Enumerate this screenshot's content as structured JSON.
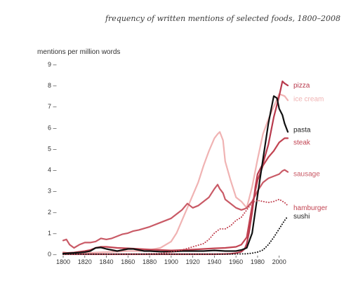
{
  "chart_data": {
    "type": "line",
    "title": "frequency of written mentions of selected foods, 1800–2008",
    "xlabel": "",
    "ylabel": "mentions per million words",
    "xlim": [
      1800,
      2008
    ],
    "ylim": [
      0,
      9
    ],
    "x_ticks": [
      "1800",
      "1820",
      "1840",
      "1860",
      "1880",
      "1900",
      "1920",
      "1940",
      "1960",
      "1980",
      "2000"
    ],
    "y_ticks": [
      "0 –",
      "1 –",
      "2 –",
      "3 –",
      "4 –",
      "5 –",
      "6 –",
      "7 –",
      "8 –",
      "9 –"
    ],
    "grid": false,
    "legend": "direct labels at line ends (right)",
    "series": [
      {
        "name": "ice cream",
        "color": "#f0b3b3",
        "style": "solid",
        "x": [
          1800,
          1805,
          1810,
          1820,
          1830,
          1840,
          1850,
          1860,
          1870,
          1880,
          1890,
          1900,
          1905,
          1910,
          1915,
          1920,
          1925,
          1930,
          1935,
          1940,
          1943,
          1945,
          1948,
          1950,
          1955,
          1960,
          1965,
          1970,
          1975,
          1980,
          1985,
          1990,
          1995,
          2000,
          2005,
          2008
        ],
        "values": [
          0.1,
          0.05,
          0.05,
          0.05,
          0.08,
          0.1,
          0.12,
          0.15,
          0.15,
          0.2,
          0.3,
          0.6,
          1.0,
          1.6,
          2.2,
          2.8,
          3.4,
          4.2,
          4.9,
          5.5,
          5.7,
          5.8,
          5.4,
          4.4,
          3.5,
          2.7,
          2.5,
          2.2,
          3.2,
          4.5,
          5.7,
          6.4,
          7.0,
          7.6,
          7.5,
          7.3
        ]
      },
      {
        "name": "sausage",
        "color": "#c95a66",
        "style": "solid",
        "x": [
          1800,
          1803,
          1806,
          1810,
          1815,
          1820,
          1825,
          1830,
          1835,
          1840,
          1845,
          1850,
          1855,
          1860,
          1865,
          1870,
          1880,
          1890,
          1900,
          1905,
          1910,
          1915,
          1920,
          1925,
          1930,
          1935,
          1940,
          1943,
          1945,
          1948,
          1950,
          1955,
          1960,
          1965,
          1968,
          1970,
          1975,
          1980,
          1985,
          1990,
          1995,
          2000,
          2003,
          2005,
          2008
        ],
        "values": [
          0.65,
          0.7,
          0.45,
          0.3,
          0.45,
          0.55,
          0.55,
          0.6,
          0.75,
          0.7,
          0.75,
          0.85,
          0.95,
          1.0,
          1.1,
          1.15,
          1.3,
          1.5,
          1.7,
          1.9,
          2.1,
          2.4,
          2.2,
          2.3,
          2.5,
          2.7,
          3.1,
          3.3,
          3.1,
          2.9,
          2.6,
          2.4,
          2.2,
          2.1,
          2.15,
          2.2,
          2.5,
          3.0,
          3.4,
          3.6,
          3.7,
          3.8,
          3.95,
          4.0,
          3.9
        ]
      },
      {
        "name": "steak",
        "color": "#c24452",
        "style": "solid",
        "x": [
          1800,
          1810,
          1820,
          1825,
          1830,
          1835,
          1840,
          1850,
          1860,
          1870,
          1880,
          1890,
          1900,
          1910,
          1920,
          1930,
          1940,
          1950,
          1960,
          1965,
          1970,
          1975,
          1980,
          1985,
          1990,
          1995,
          2000,
          2005,
          2008
        ],
        "values": [
          0.05,
          0.08,
          0.15,
          0.2,
          0.3,
          0.35,
          0.35,
          0.3,
          0.28,
          0.25,
          0.22,
          0.2,
          0.18,
          0.2,
          0.22,
          0.25,
          0.28,
          0.3,
          0.35,
          0.45,
          0.8,
          2.3,
          3.5,
          4.2,
          4.6,
          4.9,
          5.3,
          5.5,
          5.5
        ]
      },
      {
        "name": "pizza",
        "color": "#b83a4d",
        "style": "solid",
        "x": [
          1800,
          1900,
          1940,
          1950,
          1955,
          1960,
          1965,
          1968,
          1970,
          1972,
          1975,
          1978,
          1980,
          1985,
          1990,
          1995,
          2000,
          2003,
          2005,
          2008
        ],
        "values": [
          0.0,
          0.0,
          0.0,
          0.01,
          0.02,
          0.05,
          0.12,
          0.25,
          0.5,
          1.0,
          2.0,
          3.2,
          3.8,
          4.3,
          5.2,
          6.5,
          7.5,
          8.2,
          8.1,
          8.0
        ]
      },
      {
        "name": "pasta",
        "color": "#111111",
        "style": "solid",
        "x": [
          1800,
          1815,
          1820,
          1825,
          1830,
          1835,
          1840,
          1845,
          1850,
          1855,
          1860,
          1865,
          1870,
          1875,
          1880,
          1890,
          1900,
          1910,
          1920,
          1930,
          1940,
          1950,
          1960,
          1965,
          1970,
          1975,
          1980,
          1985,
          1990,
          1995,
          1998,
          2000,
          2003,
          2005,
          2008
        ],
        "values": [
          0.03,
          0.08,
          0.1,
          0.15,
          0.3,
          0.32,
          0.25,
          0.2,
          0.15,
          0.2,
          0.25,
          0.25,
          0.2,
          0.15,
          0.15,
          0.12,
          0.12,
          0.15,
          0.15,
          0.15,
          0.18,
          0.15,
          0.15,
          0.2,
          0.3,
          1.0,
          2.8,
          4.5,
          6.2,
          7.5,
          7.4,
          6.9,
          6.6,
          6.2,
          5.8
        ]
      },
      {
        "name": "hamburger",
        "color": "#c24452",
        "style": "dotted",
        "x": [
          1870,
          1880,
          1890,
          1900,
          1910,
          1920,
          1930,
          1935,
          1940,
          1945,
          1950,
          1955,
          1960,
          1965,
          1970,
          1975,
          1980,
          1985,
          1990,
          1995,
          2000,
          2005,
          2008
        ],
        "values": [
          0.0,
          0.02,
          0.03,
          0.1,
          0.2,
          0.35,
          0.5,
          0.7,
          1.0,
          1.2,
          1.2,
          1.35,
          1.6,
          1.75,
          2.1,
          2.45,
          2.55,
          2.5,
          2.45,
          2.5,
          2.6,
          2.45,
          2.3
        ]
      },
      {
        "name": "sushi",
        "color": "#111111",
        "style": "dotted",
        "x": [
          1800,
          1950,
          1960,
          1970,
          1975,
          1980,
          1985,
          1990,
          1995,
          2000,
          2005,
          2008
        ],
        "values": [
          0.0,
          0.0,
          0.01,
          0.02,
          0.05,
          0.1,
          0.2,
          0.45,
          0.8,
          1.2,
          1.6,
          1.8
        ]
      }
    ],
    "series_labels": [
      "pizza",
      "ice cream",
      "pasta",
      "steak",
      "sausage",
      "hamburger",
      "sushi"
    ]
  }
}
